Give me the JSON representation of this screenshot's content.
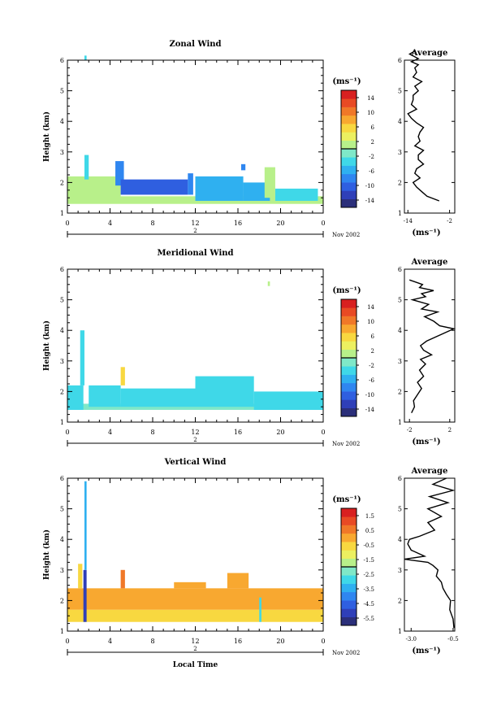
{
  "chart_data": [
    {
      "type": "heatmap",
      "title": "Zonal Wind",
      "ylabel": "Height (km)",
      "xlabel": "",
      "xlim": [
        0,
        24
      ],
      "ylim": [
        1,
        6
      ],
      "x_ticks": [
        "0",
        "4",
        "8",
        "12",
        "16",
        "20",
        "0"
      ],
      "y_ticks": [
        "1",
        "2",
        "3",
        "4",
        "5",
        "6"
      ],
      "date_bar": {
        "day_label": "2",
        "month_label": "Nov 2002"
      },
      "colorbar": {
        "unit": "(ms⁻¹)",
        "ticks": [
          "14",
          "10",
          "6",
          "2",
          "-2",
          "-6",
          "-10",
          "-14"
        ],
        "range": [
          -16,
          16
        ]
      },
      "field": [
        {
          "t": [
            0.0,
            24.0
          ],
          "z": [
            1.3,
            1.55
          ],
          "value": 1.5
        },
        {
          "t": [
            0.0,
            5.0
          ],
          "z": [
            1.4,
            2.2
          ],
          "value": 0.5
        },
        {
          "t": [
            1.6,
            2.0
          ],
          "z": [
            2.1,
            2.9
          ],
          "value": -4.0
        },
        {
          "t": [
            1.6,
            1.8
          ],
          "z": [
            6.0,
            6.15
          ],
          "value": -4.0
        },
        {
          "t": [
            4.5,
            5.3
          ],
          "z": [
            1.9,
            2.7
          ],
          "value": -7.0
        },
        {
          "t": [
            5.0,
            11.3
          ],
          "z": [
            1.6,
            2.1
          ],
          "value": -11.0
        },
        {
          "t": [
            11.3,
            11.8
          ],
          "z": [
            1.6,
            2.3
          ],
          "value": -7.5
        },
        {
          "t": [
            12.0,
            16.5
          ],
          "z": [
            1.4,
            2.2
          ],
          "value": -5.0
        },
        {
          "t": [
            16.3,
            16.7
          ],
          "z": [
            2.4,
            2.6
          ],
          "value": -9.0
        },
        {
          "t": [
            16.5,
            19.0
          ],
          "z": [
            1.4,
            2.0
          ],
          "value": -5.0
        },
        {
          "t": [
            18.5,
            19.5
          ],
          "z": [
            1.5,
            2.5
          ],
          "value": 0.0
        },
        {
          "t": [
            19.5,
            23.5
          ],
          "z": [
            1.4,
            1.8
          ],
          "value": -4.0
        }
      ],
      "average_panel": {
        "title": "Average",
        "xlabel": "(ms⁻¹)",
        "x_ticks": [
          "-14",
          "-2"
        ],
        "xlim": [
          -15,
          -0.5
        ],
        "profile_x": [
          -5.0,
          -8.5,
          -10.0,
          -11.5,
          -12.5,
          -10.5,
          -12.0,
          -11.5,
          -9.5,
          -11.0,
          -11.0,
          -9.5,
          -12.0,
          -10.5,
          -11.0,
          -10.5,
          -9.5,
          -11.5,
          -13.0,
          -14.0,
          -11.5,
          -13.0,
          -12.5,
          -12.5,
          -11.0,
          -12.0,
          -10.0,
          -12.5,
          -11.5,
          -12.0,
          -11.0,
          -13.0,
          -11.0,
          -13.5,
          -12.0
        ],
        "profile_z": [
          1.4,
          1.55,
          1.7,
          1.85,
          2.0,
          2.15,
          2.3,
          2.45,
          2.6,
          2.75,
          2.9,
          3.05,
          3.2,
          3.35,
          3.5,
          3.65,
          3.8,
          3.95,
          4.1,
          4.25,
          4.4,
          4.55,
          4.7,
          4.85,
          5.0,
          5.15,
          5.3,
          5.45,
          5.6,
          5.75,
          5.85,
          5.95,
          6.05,
          6.2,
          6.3
        ]
      }
    },
    {
      "type": "heatmap",
      "title": "Meridional Wind",
      "ylabel": "Height (km)",
      "xlabel": "",
      "xlim": [
        0,
        24
      ],
      "ylim": [
        1,
        6
      ],
      "x_ticks": [
        "0",
        "4",
        "8",
        "12",
        "16",
        "20",
        "0"
      ],
      "y_ticks": [
        "1",
        "2",
        "3",
        "4",
        "5",
        "6"
      ],
      "date_bar": {
        "day_label": "2",
        "month_label": "Nov 2002"
      },
      "colorbar": {
        "unit": "(ms⁻¹)",
        "ticks": [
          "14",
          "10",
          "6",
          "2",
          "-2",
          "-6",
          "-10",
          "-14"
        ],
        "range": [
          -16,
          16
        ]
      },
      "field": [
        {
          "t": [
            0.0,
            24.0
          ],
          "z": [
            1.4,
            1.6
          ],
          "value": -2.0
        },
        {
          "t": [
            0.0,
            1.5
          ],
          "z": [
            1.4,
            2.2
          ],
          "value": -3.0
        },
        {
          "t": [
            1.2,
            1.6
          ],
          "z": [
            2.2,
            4.0
          ],
          "value": -3.0
        },
        {
          "t": [
            2.0,
            5.0
          ],
          "z": [
            1.5,
            2.2
          ],
          "value": -3.5
        },
        {
          "t": [
            5.0,
            5.4
          ],
          "z": [
            2.2,
            2.8
          ],
          "value": 6.0
        },
        {
          "t": [
            5.0,
            12.0
          ],
          "z": [
            1.5,
            2.1
          ],
          "value": -3.0
        },
        {
          "t": [
            12.0,
            17.5
          ],
          "z": [
            1.5,
            2.5
          ],
          "value": -3.5
        },
        {
          "t": [
            17.5,
            24.0
          ],
          "z": [
            1.4,
            2.0
          ],
          "value": -3.0
        },
        {
          "t": [
            18.8,
            19.0
          ],
          "z": [
            5.45,
            5.6
          ],
          "value": 0.0
        }
      ],
      "average_panel": {
        "title": "Average",
        "xlabel": "(ms⁻¹)",
        "x_ticks": [
          "-2",
          "2"
        ],
        "xlim": [
          -2.5,
          2.5
        ],
        "profile_x": [
          -1.8,
          -1.5,
          -1.6,
          -1.2,
          -0.8,
          -1.2,
          -0.6,
          -1.0,
          -0.4,
          -0.9,
          0.2,
          -0.6,
          -0.9,
          -0.3,
          2.4,
          1.0,
          0.4,
          -0.5,
          0.8,
          -0.8,
          -0.1,
          -1.7,
          -0.4,
          -0.8,
          0.4,
          -1.0,
          -0.7,
          -2.0
        ],
        "profile_z": [
          1.3,
          1.5,
          1.7,
          1.9,
          2.1,
          2.3,
          2.5,
          2.7,
          2.9,
          3.05,
          3.2,
          3.35,
          3.5,
          3.65,
          4.05,
          4.15,
          4.3,
          4.45,
          4.6,
          4.7,
          4.85,
          5.0,
          5.1,
          5.2,
          5.3,
          5.4,
          5.5,
          5.65
        ]
      }
    },
    {
      "type": "heatmap",
      "title": "Vertical Wind",
      "ylabel": "Height (km)",
      "xlabel": "Local Time",
      "xlim": [
        0,
        24
      ],
      "ylim": [
        1,
        6
      ],
      "x_ticks": [
        "0",
        "4",
        "8",
        "12",
        "16",
        "20",
        "0"
      ],
      "y_ticks": [
        "1",
        "2",
        "3",
        "4",
        "5",
        "6"
      ],
      "date_bar": {
        "day_label": "2",
        "month_label": "Nov 2002"
      },
      "colorbar": {
        "unit": "(ms⁻¹)",
        "ticks": [
          "1.5",
          "0.5",
          "-0.5",
          "-1.5",
          "-2.5",
          "-3.5",
          "-4.5",
          "-5.5"
        ],
        "range": [
          -6,
          2
        ]
      },
      "field": [
        {
          "t": [
            0.0,
            24.0
          ],
          "z": [
            1.3,
            1.7
          ],
          "value": -0.7
        },
        {
          "t": [
            0.0,
            24.0
          ],
          "z": [
            1.7,
            2.4
          ],
          "value": -0.1
        },
        {
          "t": [
            1.0,
            1.4
          ],
          "z": [
            2.4,
            3.2
          ],
          "value": -0.5
        },
        {
          "t": [
            1.5,
            1.8
          ],
          "z": [
            1.3,
            3.0
          ],
          "value": -5.0
        },
        {
          "t": [
            1.6,
            1.8
          ],
          "z": [
            3.0,
            5.9
          ],
          "value": -3.5
        },
        {
          "t": [
            5.0,
            5.4
          ],
          "z": [
            2.4,
            3.0
          ],
          "value": 0.3
        },
        {
          "t": [
            10.0,
            13.0
          ],
          "z": [
            2.4,
            2.6
          ],
          "value": -0.1
        },
        {
          "t": [
            15.0,
            17.0
          ],
          "z": [
            2.4,
            2.9
          ],
          "value": 0.0
        },
        {
          "t": [
            18.0,
            18.2
          ],
          "z": [
            1.3,
            2.1
          ],
          "value": -2.8
        }
      ],
      "average_panel": {
        "title": "Average",
        "xlabel": "(ms⁻¹)",
        "x_ticks": [
          "-3.0",
          "-0.5"
        ],
        "xlim": [
          -3.4,
          -0.4
        ],
        "profile_x": [
          -0.45,
          -0.5,
          -0.7,
          -0.65,
          -0.9,
          -1.1,
          -1.2,
          -1.5,
          -1.4,
          -1.7,
          -2.0,
          -3.4,
          -2.2,
          -2.6,
          -3.0,
          -3.2,
          -3.1,
          -2.5,
          -1.6,
          -2.0,
          -1.2,
          -2.0,
          -0.8,
          -1.9,
          -0.5,
          -1.7,
          -0.9
        ],
        "profile_z": [
          1.1,
          1.4,
          1.7,
          2.0,
          2.2,
          2.4,
          2.6,
          2.8,
          3.0,
          3.15,
          3.25,
          3.35,
          3.45,
          3.55,
          3.65,
          3.85,
          4.0,
          4.1,
          4.3,
          4.55,
          4.75,
          5.0,
          5.2,
          5.4,
          5.6,
          5.8,
          6.0
        ]
      }
    }
  ]
}
